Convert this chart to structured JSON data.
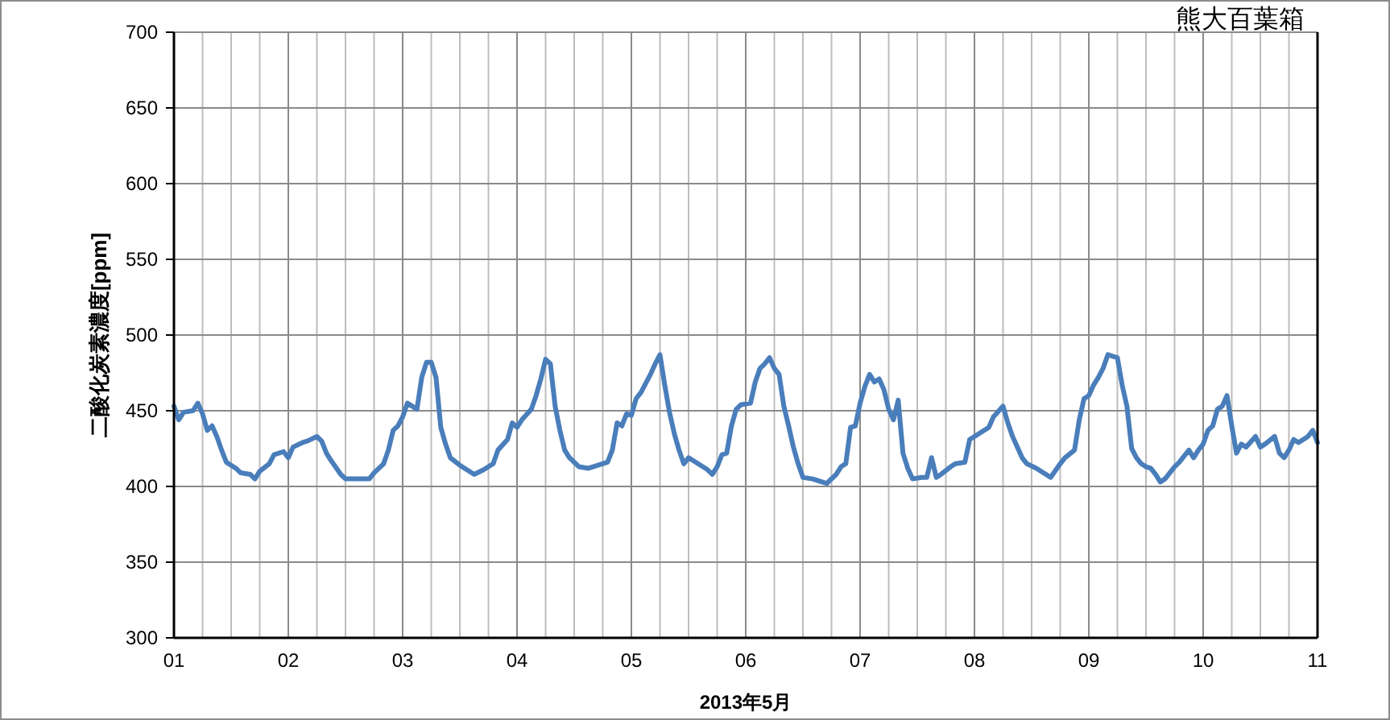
{
  "chart_data": {
    "type": "line",
    "title": "熊大百葉箱",
    "xlabel": "2013年5月",
    "ylabel": "二酸化炭素濃度[ppm]",
    "xlim": [
      "2013-05-01",
      "2013-05-11"
    ],
    "xticks": [
      {
        "value": "2013-05-01",
        "label": "01"
      },
      {
        "value": "2013-05-01T06:00",
        "label": null
      },
      {
        "value": "2013-05-01T12:00",
        "label": null
      },
      {
        "value": "2013-05-01T18:00",
        "label": null
      },
      {
        "value": "2013-05-02",
        "label": "02"
      },
      {
        "value": "2013-05-02T06:00",
        "label": null
      },
      {
        "value": "2013-05-02T12:00",
        "label": null
      },
      {
        "value": "2013-05-02T18:00",
        "label": null
      },
      {
        "value": "2013-05-03",
        "label": "03"
      },
      {
        "value": "2013-05-03T06:00",
        "label": null
      },
      {
        "value": "2013-05-03T12:00",
        "label": null
      },
      {
        "value": "2013-05-03T18:00",
        "label": null
      },
      {
        "value": "2013-05-04",
        "label": "04"
      },
      {
        "value": "2013-05-04T06:00",
        "label": null
      },
      {
        "value": "2013-05-04T12:00",
        "label": null
      },
      {
        "value": "2013-05-04T18:00",
        "label": null
      },
      {
        "value": "2013-05-05",
        "label": "05"
      },
      {
        "value": "2013-05-05T06:00",
        "label": null
      },
      {
        "value": "2013-05-05T12:00",
        "label": null
      },
      {
        "value": "2013-05-05T18:00",
        "label": null
      },
      {
        "value": "2013-05-06",
        "label": "06"
      },
      {
        "value": "2013-05-06T06:00",
        "label": null
      },
      {
        "value": "2013-05-06T12:00",
        "label": null
      },
      {
        "value": "2013-05-06T18:00",
        "label": null
      },
      {
        "value": "2013-05-07",
        "label": "07"
      },
      {
        "value": "2013-05-07T06:00",
        "label": null
      },
      {
        "value": "2013-05-07T12:00",
        "label": null
      },
      {
        "value": "2013-05-07T18:00",
        "label": null
      },
      {
        "value": "2013-05-08",
        "label": "08"
      },
      {
        "value": "2013-05-08T06:00",
        "label": null
      },
      {
        "value": "2013-05-08T12:00",
        "label": null
      },
      {
        "value": "2013-05-08T18:00",
        "label": null
      },
      {
        "value": "2013-05-09",
        "label": "09"
      },
      {
        "value": "2013-05-09T06:00",
        "label": null
      },
      {
        "value": "2013-05-09T12:00",
        "label": null
      },
      {
        "value": "2013-05-09T18:00",
        "label": null
      },
      {
        "value": "2013-05-10",
        "label": "10"
      },
      {
        "value": "2013-05-10T06:00",
        "label": null
      },
      {
        "value": "2013-05-10T12:00",
        "label": null
      },
      {
        "value": "2013-05-10T18:00",
        "label": null
      },
      {
        "value": "2013-05-11",
        "label": "11"
      }
    ],
    "ylim": [
      300,
      700
    ],
    "yticks": [
      300,
      350,
      400,
      450,
      500,
      550,
      600,
      650,
      700
    ],
    "grid": true,
    "color": "#4a7ebb",
    "x": [
      "2013-05-01T00:00",
      "2013-05-01T01:00",
      "2013-05-01T02:00",
      "2013-05-01T04:00",
      "2013-05-01T05:00",
      "2013-05-01T06:00",
      "2013-05-01T07:00",
      "2013-05-01T08:00",
      "2013-05-01T09:00",
      "2013-05-01T10:00",
      "2013-05-01T11:00",
      "2013-05-01T12:00",
      "2013-05-01T13:00",
      "2013-05-01T14:00",
      "2013-05-01T16:00",
      "2013-05-01T17:00",
      "2013-05-01T18:00",
      "2013-05-01T20:00",
      "2013-05-01T21:00",
      "2013-05-01T23:00",
      "2013-05-02T00:00",
      "2013-05-02T01:00",
      "2013-05-02T03:00",
      "2013-05-02T04:00",
      "2013-05-02T06:00",
      "2013-05-02T07:00",
      "2013-05-02T08:00",
      "2013-05-02T09:00",
      "2013-05-02T11:00",
      "2013-05-02T12:00",
      "2013-05-02T14:00",
      "2013-05-02T17:00",
      "2013-05-02T18:00",
      "2013-05-02T20:00",
      "2013-05-02T21:00",
      "2013-05-02T22:00",
      "2013-05-02T23:00",
      "2013-05-03T00:00",
      "2013-05-03T01:00",
      "2013-05-03T02:00",
      "2013-05-03T03:00",
      "2013-05-03T04:00",
      "2013-05-03T05:00",
      "2013-05-03T06:00",
      "2013-05-03T07:00",
      "2013-05-03T08:00",
      "2013-05-03T09:00",
      "2013-05-03T10:00",
      "2013-05-03T12:00",
      "2013-05-03T13:00",
      "2013-05-03T15:00",
      "2013-05-03T17:00",
      "2013-05-03T19:00",
      "2013-05-03T20:00",
      "2013-05-03T22:00",
      "2013-05-03T23:00",
      "2013-05-04T00:00",
      "2013-05-04T01:00",
      "2013-05-04T03:00",
      "2013-05-04T04:00",
      "2013-05-04T05:00",
      "2013-05-04T06:00",
      "2013-05-04T07:00",
      "2013-05-04T08:00",
      "2013-05-04T09:00",
      "2013-05-04T10:00",
      "2013-05-04T11:00",
      "2013-05-04T13:00",
      "2013-05-04T15:00",
      "2013-05-04T17:00",
      "2013-05-04T19:00",
      "2013-05-04T20:00",
      "2013-05-04T21:00",
      "2013-05-04T22:00",
      "2013-05-04T23:00",
      "2013-05-05T00:00",
      "2013-05-05T01:00",
      "2013-05-05T02:00",
      "2013-05-05T04:00",
      "2013-05-05T05:00",
      "2013-05-05T06:00",
      "2013-05-05T07:00",
      "2013-05-05T08:00",
      "2013-05-05T09:00",
      "2013-05-05T10:00",
      "2013-05-05T11:00",
      "2013-05-05T12:00",
      "2013-05-05T14:00",
      "2013-05-05T16:00",
      "2013-05-05T17:00",
      "2013-05-05T18:00",
      "2013-05-05T19:00",
      "2013-05-05T20:00",
      "2013-05-05T21:00",
      "2013-05-05T22:00",
      "2013-05-05T23:00",
      "2013-05-06T01:00",
      "2013-05-06T02:00",
      "2013-05-06T03:00",
      "2013-05-06T04:00",
      "2013-05-06T05:00",
      "2013-05-06T06:00",
      "2013-05-06T07:00",
      "2013-05-06T08:00",
      "2013-05-06T09:00",
      "2013-05-06T10:00",
      "2013-05-06T11:00",
      "2013-05-06T12:00",
      "2013-05-06T14:00",
      "2013-05-06T16:00",
      "2013-05-06T17:00",
      "2013-05-06T19:00",
      "2013-05-06T20:00",
      "2013-05-06T21:00",
      "2013-05-06T22:00",
      "2013-05-06T23:00",
      "2013-05-07T00:00",
      "2013-05-07T01:00",
      "2013-05-07T02:00",
      "2013-05-07T03:00",
      "2013-05-07T04:00",
      "2013-05-07T05:00",
      "2013-05-07T06:00",
      "2013-05-07T07:00",
      "2013-05-07T08:00",
      "2013-05-07T09:00",
      "2013-05-07T10:00",
      "2013-05-07T11:00",
      "2013-05-07T13:00",
      "2013-05-07T14:00",
      "2013-05-07T15:00",
      "2013-05-07T16:00",
      "2013-05-07T17:00",
      "2013-05-07T19:00",
      "2013-05-07T20:00",
      "2013-05-07T22:00",
      "2013-05-07T23:00",
      "2013-05-08T01:00",
      "2013-05-08T03:00",
      "2013-05-08T04:00",
      "2013-05-08T06:00",
      "2013-05-08T07:00",
      "2013-05-08T08:00",
      "2013-05-08T10:00",
      "2013-05-08T11:00",
      "2013-05-08T13:00",
      "2013-05-08T15:00",
      "2013-05-08T16:00",
      "2013-05-08T18:00",
      "2013-05-08T19:00",
      "2013-05-08T21:00",
      "2013-05-08T22:00",
      "2013-05-08T23:00",
      "2013-05-09T00:00",
      "2013-05-09T01:00",
      "2013-05-09T02:00",
      "2013-05-09T03:00",
      "2013-05-09T04:00",
      "2013-05-09T05:00",
      "2013-05-09T06:00",
      "2013-05-09T07:00",
      "2013-05-09T08:00",
      "2013-05-09T09:00",
      "2013-05-09T10:00",
      "2013-05-09T11:00",
      "2013-05-09T12:00",
      "2013-05-09T13:00",
      "2013-05-09T14:00",
      "2013-05-09T15:00",
      "2013-05-09T16:00",
      "2013-05-09T18:00",
      "2013-05-09T19:00",
      "2013-05-09T21:00",
      "2013-05-09T22:00",
      "2013-05-09T23:00",
      "2013-05-10T00:00",
      "2013-05-10T01:00",
      "2013-05-10T02:00",
      "2013-05-10T03:00",
      "2013-05-10T04:00",
      "2013-05-10T05:00",
      "2013-05-10T06:00",
      "2013-05-10T07:00",
      "2013-05-10T08:00",
      "2013-05-10T09:00",
      "2013-05-10T11:00",
      "2013-05-10T12:00",
      "2013-05-10T13:00",
      "2013-05-10T15:00",
      "2013-05-10T16:00",
      "2013-05-10T17:00",
      "2013-05-10T18:00",
      "2013-05-10T19:00",
      "2013-05-10T20:00",
      "2013-05-10T22:00",
      "2013-05-10T23:00",
      "2013-05-11T00:00"
    ],
    "values": [
      453,
      444,
      449,
      450,
      455,
      448,
      437,
      440,
      433,
      424,
      416,
      414,
      412,
      409,
      408,
      405,
      410,
      415,
      421,
      423,
      419,
      426,
      429,
      430,
      433,
      430,
      422,
      417,
      408,
      405,
      405,
      405,
      409,
      415,
      424,
      437,
      440,
      446,
      455,
      453,
      451,
      472,
      482,
      482,
      472,
      439,
      428,
      419,
      414,
      412,
      408,
      411,
      415,
      424,
      431,
      442,
      439,
      444,
      451,
      460,
      471,
      484,
      481,
      453,
      437,
      424,
      419,
      413,
      412,
      414,
      416,
      424,
      442,
      440,
      448,
      447,
      458,
      462,
      474,
      481,
      487,
      467,
      449,
      435,
      424,
      415,
      419,
      415,
      411,
      408,
      413,
      421,
      422,
      440,
      451,
      454,
      455,
      469,
      478,
      481,
      485,
      478,
      474,
      453,
      440,
      426,
      415,
      406,
      405,
      403,
      402,
      408,
      413,
      415,
      439,
      440,
      455,
      466,
      474,
      469,
      471,
      464,
      451,
      444,
      457,
      422,
      412,
      405,
      406,
      406,
      419,
      406,
      408,
      413,
      415,
      416,
      431,
      435,
      439,
      446,
      453,
      442,
      433,
      419,
      415,
      412,
      408,
      406,
      415,
      419,
      424,
      444,
      458,
      460,
      467,
      472,
      478,
      487,
      486,
      485,
      467,
      453,
      425,
      419,
      415,
      413,
      412,
      408,
      403,
      405,
      413,
      416,
      424,
      419,
      424,
      428,
      437,
      440,
      451,
      453,
      460,
      440,
      422,
      428,
      426,
      433,
      426,
      428,
      433,
      422,
      419,
      424,
      431,
      429,
      433,
      437,
      429
    ]
  }
}
